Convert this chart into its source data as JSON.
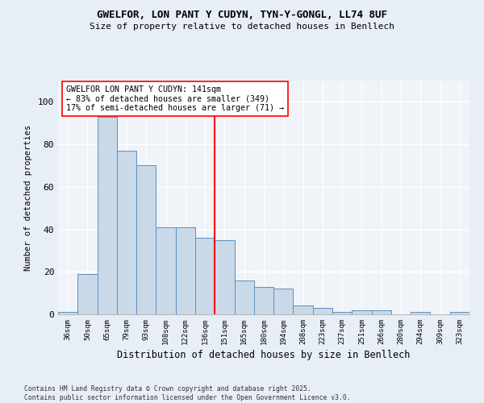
{
  "title1": "GWELFOR, LON PANT Y CUDYN, TYN-Y-GONGL, LL74 8UF",
  "title2": "Size of property relative to detached houses in Benllech",
  "xlabel": "Distribution of detached houses by size in Benllech",
  "ylabel": "Number of detached properties",
  "categories": [
    "36sqm",
    "50sqm",
    "65sqm",
    "79sqm",
    "93sqm",
    "108sqm",
    "122sqm",
    "136sqm",
    "151sqm",
    "165sqm",
    "180sqm",
    "194sqm",
    "208sqm",
    "223sqm",
    "237sqm",
    "251sqm",
    "266sqm",
    "280sqm",
    "294sqm",
    "309sqm",
    "323sqm"
  ],
  "values": [
    1,
    19,
    93,
    77,
    70,
    41,
    41,
    36,
    35,
    16,
    13,
    12,
    4,
    3,
    1,
    2,
    2,
    0,
    1,
    0,
    1
  ],
  "bar_color": "#c9d9e8",
  "bar_edge_color": "#5a8fc0",
  "vline_x": 7.5,
  "annotation_line1": "GWELFOR LON PANT Y CUDYN: 141sqm",
  "annotation_line2": "← 83% of detached houses are smaller (349)",
  "annotation_line3": "17% of semi-detached houses are larger (71) →",
  "ylim": [
    0,
    110
  ],
  "yticks": [
    0,
    20,
    40,
    60,
    80,
    100
  ],
  "footer": "Contains HM Land Registry data © Crown copyright and database right 2025.\nContains public sector information licensed under the Open Government Licence v3.0.",
  "bg_color": "#e8eef5",
  "plot_bg_color": "#f0f4f8"
}
